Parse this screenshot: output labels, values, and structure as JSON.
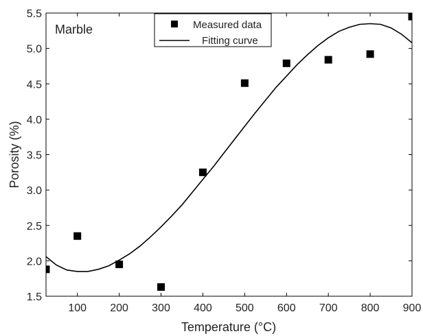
{
  "chart_data": {
    "type": "scatter",
    "annotation": "Marble",
    "xlabel": "Temperature (°C)",
    "ylabel": "Porosity (%)",
    "xlim": [
      25,
      900
    ],
    "ylim": [
      1.5,
      5.5
    ],
    "xticks": [
      100,
      200,
      300,
      400,
      500,
      600,
      700,
      800,
      900
    ],
    "yticks": [
      1.5,
      2.0,
      2.5,
      3.0,
      3.5,
      4.0,
      4.5,
      5.0,
      5.5
    ],
    "grid": false,
    "legend_position": "top-center",
    "series": [
      {
        "name": "Measured data",
        "kind": "scatter",
        "marker": "square",
        "color": "#000000",
        "points": [
          {
            "x": 25,
            "y": 1.88
          },
          {
            "x": 100,
            "y": 2.35
          },
          {
            "x": 200,
            "y": 1.95
          },
          {
            "x": 300,
            "y": 1.63
          },
          {
            "x": 400,
            "y": 3.25
          },
          {
            "x": 500,
            "y": 4.51
          },
          {
            "x": 600,
            "y": 4.79
          },
          {
            "x": 700,
            "y": 4.84
          },
          {
            "x": 800,
            "y": 4.92
          },
          {
            "x": 900,
            "y": 5.45
          }
        ]
      },
      {
        "name": "Fitting curve",
        "kind": "line",
        "color": "#000000",
        "points": [
          {
            "x": 25,
            "y": 2.06
          },
          {
            "x": 50,
            "y": 1.94
          },
          {
            "x": 75,
            "y": 1.87
          },
          {
            "x": 100,
            "y": 1.85
          },
          {
            "x": 125,
            "y": 1.85
          },
          {
            "x": 150,
            "y": 1.88
          },
          {
            "x": 175,
            "y": 1.93
          },
          {
            "x": 200,
            "y": 2.01
          },
          {
            "x": 225,
            "y": 2.1
          },
          {
            "x": 250,
            "y": 2.21
          },
          {
            "x": 275,
            "y": 2.34
          },
          {
            "x": 300,
            "y": 2.48
          },
          {
            "x": 325,
            "y": 2.63
          },
          {
            "x": 350,
            "y": 2.79
          },
          {
            "x": 375,
            "y": 2.97
          },
          {
            "x": 400,
            "y": 3.15
          },
          {
            "x": 425,
            "y": 3.33
          },
          {
            "x": 450,
            "y": 3.52
          },
          {
            "x": 475,
            "y": 3.71
          },
          {
            "x": 500,
            "y": 3.9
          },
          {
            "x": 525,
            "y": 4.09
          },
          {
            "x": 550,
            "y": 4.27
          },
          {
            "x": 575,
            "y": 4.45
          },
          {
            "x": 600,
            "y": 4.61
          },
          {
            "x": 625,
            "y": 4.77
          },
          {
            "x": 650,
            "y": 4.91
          },
          {
            "x": 675,
            "y": 5.04
          },
          {
            "x": 700,
            "y": 5.15
          },
          {
            "x": 725,
            "y": 5.24
          },
          {
            "x": 750,
            "y": 5.3
          },
          {
            "x": 775,
            "y": 5.34
          },
          {
            "x": 800,
            "y": 5.35
          },
          {
            "x": 825,
            "y": 5.34
          },
          {
            "x": 850,
            "y": 5.29
          },
          {
            "x": 875,
            "y": 5.2
          },
          {
            "x": 900,
            "y": 5.08
          }
        ]
      }
    ]
  }
}
